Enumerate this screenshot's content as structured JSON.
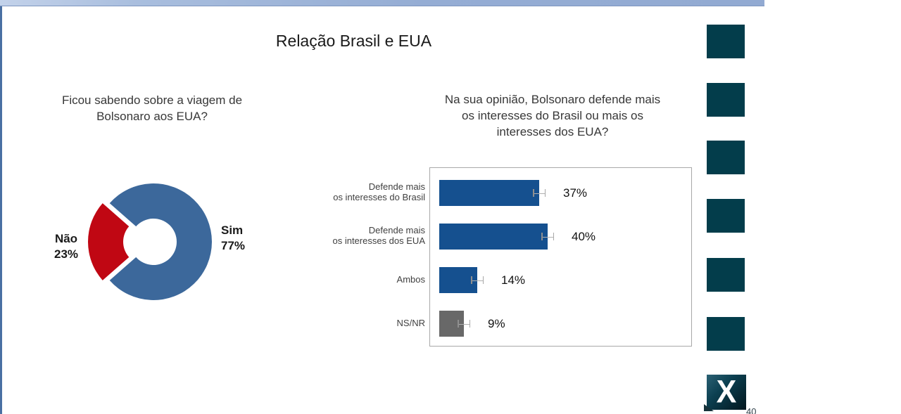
{
  "slide": {
    "title": "Relação Brasil e EUA",
    "page_number": "40"
  },
  "colors": {
    "top_bar": "#95ADD4",
    "left_strip": "#4A70A3",
    "decor_square": "#033D4B",
    "frame_border": "#A8A8A8",
    "donut_blue": "#3C689B",
    "donut_red": "#C00713",
    "bar_blue": "#15508F",
    "bar_gray": "#686868"
  },
  "decor": {
    "square_count": 6,
    "logo_letter": "X"
  },
  "chart_data": [
    {
      "type": "pie",
      "subtype": "donut",
      "question": "Ficou sabendo sobre a  viagem de\nBolsonaro aos EUA?",
      "labels": [
        "Sim",
        "Não"
      ],
      "values": [
        77,
        23
      ],
      "display_labels": [
        "Sim\n77%",
        "Não\n23%"
      ],
      "colors": [
        "#3C689B",
        "#C00713"
      ],
      "exploded": [
        false,
        true
      ],
      "legend_position": "none",
      "data_labels": "outside"
    },
    {
      "type": "bar",
      "orientation": "horizontal",
      "question": "Na sua opinião, Bolsonaro defende mais\nos interesses do Brasil ou mais os\ninteresses dos EUA?",
      "categories": [
        "Defende mais\nos interesses do Brasil",
        "Defende mais\nos interesses dos EUA",
        "Ambos",
        "NS/NR"
      ],
      "values": [
        37,
        40,
        14,
        9
      ],
      "value_labels": [
        "37%",
        "40%",
        "14%",
        "9%"
      ],
      "bar_colors": [
        "#15508F",
        "#15508F",
        "#15508F",
        "#686868"
      ],
      "error_bars": true,
      "error_halfwidth_pct": 2.3,
      "xlim": [
        0,
        97
      ],
      "grid": false,
      "frame": true
    }
  ]
}
